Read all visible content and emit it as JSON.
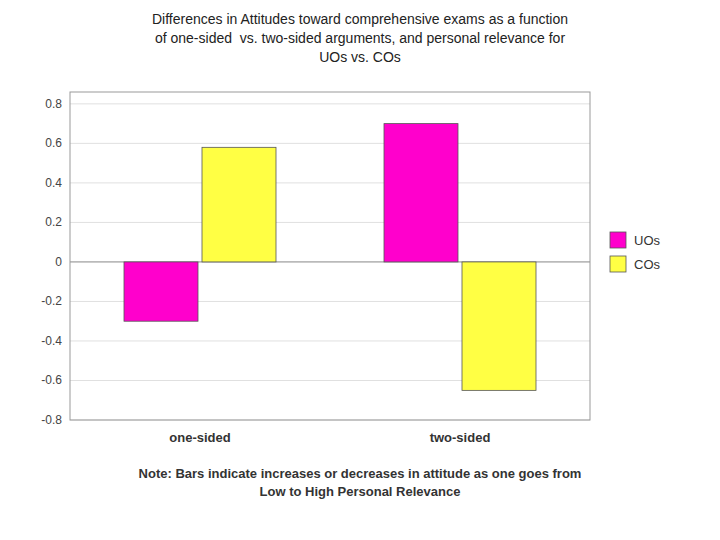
{
  "chart_data": {
    "type": "bar",
    "title": "Differences in Attitudes toward comprehensive exams as a function\nof one-sided  vs. two-sided arguments, and personal relevance for\nUOs vs. COs",
    "categories": [
      "one-sided",
      "two-sided"
    ],
    "series": [
      {
        "name": "UOs",
        "color": "#FF00CC",
        "values": [
          -0.3,
          0.7
        ]
      },
      {
        "name": "COs",
        "color": "#FFFF44",
        "values": [
          0.58,
          -0.65
        ]
      }
    ],
    "ylim": [
      -0.8,
      0.86
    ],
    "yticks": [
      -0.8,
      -0.6,
      -0.4,
      -0.2,
      0,
      0.2,
      0.4,
      0.6,
      0.8
    ],
    "grid": true,
    "legend": "right",
    "note": "Note: Bars indicate increases or decreases in attitude as one goes from\nLow to High Personal Relevance"
  }
}
